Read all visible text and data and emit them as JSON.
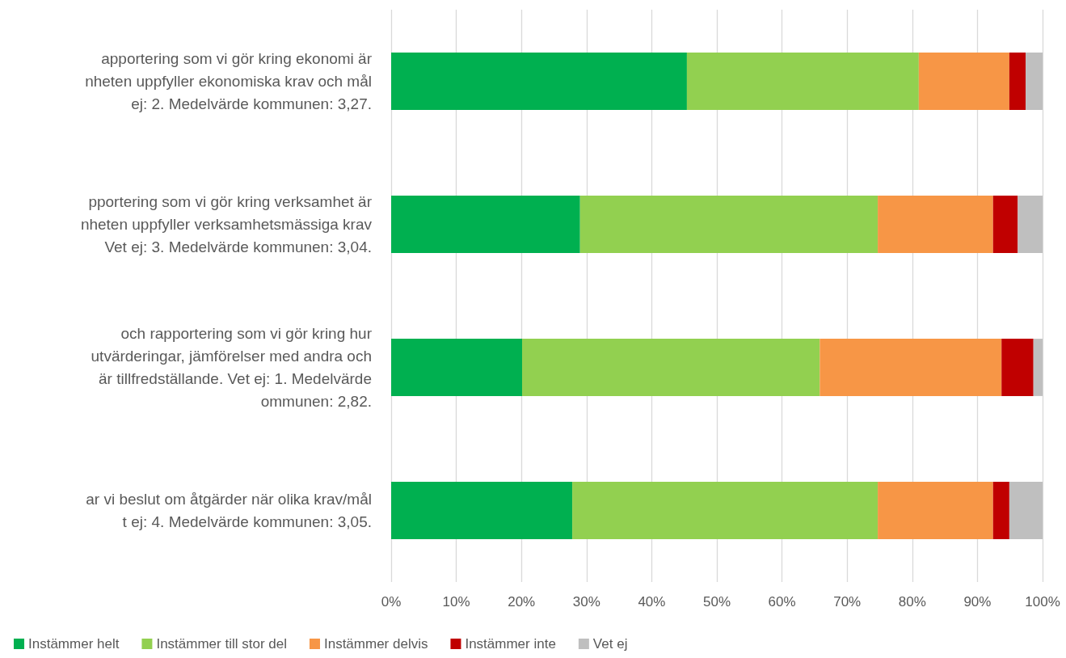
{
  "chart_data": {
    "type": "bar",
    "orientation": "horizontal",
    "stacked": true,
    "categories": [
      "apportering som vi gör kring ekonomi är\nnheten uppfyller ekonomiska krav och mål\nej: 2. Medelvärde kommunen: 3,27.",
      "pportering som vi gör kring verksamhet är\nnheten uppfyller verksamhetsmässiga krav\nVet ej: 3. Medelvärde kommunen: 3,04.",
      "och rapportering som vi gör kring hur\n utvärderingar, jämförelser med andra och\n är tillfredställande. Vet ej: 1. Medelvärde\nommunen: 2,82.",
      "ar vi beslut om åtgärder när olika krav/mål\nt ej: 4. Medelvärde kommunen: 3,05."
    ],
    "series": [
      {
        "name": "Instämmer helt",
        "color": "#00b050",
        "values": [
          45.4,
          29.0,
          20.1,
          27.8
        ]
      },
      {
        "name": "Instämmer till stor del",
        "color": "#92d050",
        "values": [
          35.6,
          45.7,
          45.7,
          46.9
        ]
      },
      {
        "name": "Instämmer delvis",
        "color": "#f79646",
        "values": [
          13.9,
          17.7,
          27.9,
          17.7
        ]
      },
      {
        "name": "Instämmer inte",
        "color": "#c00000",
        "values": [
          2.5,
          3.8,
          4.9,
          2.5
        ]
      },
      {
        "name": "Vet ej",
        "color": "#bfbfbf",
        "values": [
          2.6,
          3.8,
          1.4,
          5.1
        ]
      }
    ],
    "xlim": [
      0,
      100
    ],
    "xticks": [
      {
        "value": 0,
        "label": "0%"
      },
      {
        "value": 10,
        "label": "10%"
      },
      {
        "value": 20,
        "label": "20%"
      },
      {
        "value": 30,
        "label": "30%"
      },
      {
        "value": 40,
        "label": "40%"
      },
      {
        "value": 50,
        "label": "50%"
      },
      {
        "value": 60,
        "label": "60%"
      },
      {
        "value": 70,
        "label": "70%"
      },
      {
        "value": 80,
        "label": "80%"
      },
      {
        "value": 90,
        "label": "90%"
      },
      {
        "value": 100,
        "label": "100%"
      }
    ],
    "grid": "x",
    "legend": "bottom left"
  }
}
